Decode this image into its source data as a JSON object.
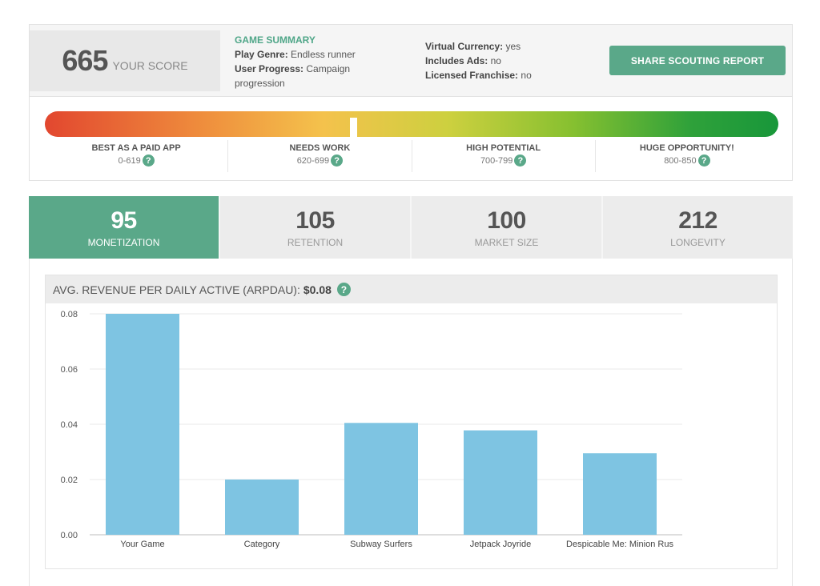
{
  "score": {
    "value": "665",
    "label": "YOUR SCORE",
    "position_fraction": 0.42
  },
  "game_summary": {
    "title": "GAME SUMMARY",
    "play_genre_key": "Play Genre:",
    "play_genre_value": "Endless runner",
    "user_progress_key": "User Progress:",
    "user_progress_value": "Campaign progression"
  },
  "meta": {
    "virtual_currency_key": "Virtual Currency:",
    "virtual_currency_value": "yes",
    "includes_ads_key": "Includes Ads:",
    "includes_ads_value": "no",
    "licensed_franchise_key": "Licensed Franchise:",
    "licensed_franchise_value": "no"
  },
  "share_button_label": "SHARE SCOUTING REPORT",
  "ranges": [
    {
      "title": "BEST AS A PAID APP",
      "range": "0-619"
    },
    {
      "title": "NEEDS WORK",
      "range": "620-699"
    },
    {
      "title": "HIGH POTENTIAL",
      "range": "700-799"
    },
    {
      "title": "HUGE OPPORTUNITY!",
      "range": "800-850"
    }
  ],
  "help_glyph": "?",
  "metrics": [
    {
      "value": "95",
      "label": "MONETIZATION",
      "active": true
    },
    {
      "value": "105",
      "label": "RETENTION",
      "active": false
    },
    {
      "value": "100",
      "label": "MARKET SIZE",
      "active": false
    },
    {
      "value": "212",
      "label": "LONGEVITY",
      "active": false
    }
  ],
  "chart_header": {
    "label": "AVG. REVENUE PER DAILY ACTIVE (ARPDAU):",
    "value": "$0.08"
  },
  "colors": {
    "accent": "#5aa889",
    "bar": "#7ec4e2",
    "gridline": "#e8e8e8"
  },
  "chart_data": {
    "type": "bar",
    "categories": [
      "Your Game",
      "Category",
      "Subway Surfers",
      "Jetpack Joyride",
      "Despicable Me: Minion Rus"
    ],
    "values": [
      0.08,
      0.02,
      0.0405,
      0.0378,
      0.0295
    ],
    "yticks": [
      "0.00",
      "0.02",
      "0.04",
      "0.06",
      "0.08"
    ],
    "ylim": [
      0,
      0.08
    ],
    "grid": true,
    "title": "",
    "xlabel": "",
    "ylabel": ""
  }
}
